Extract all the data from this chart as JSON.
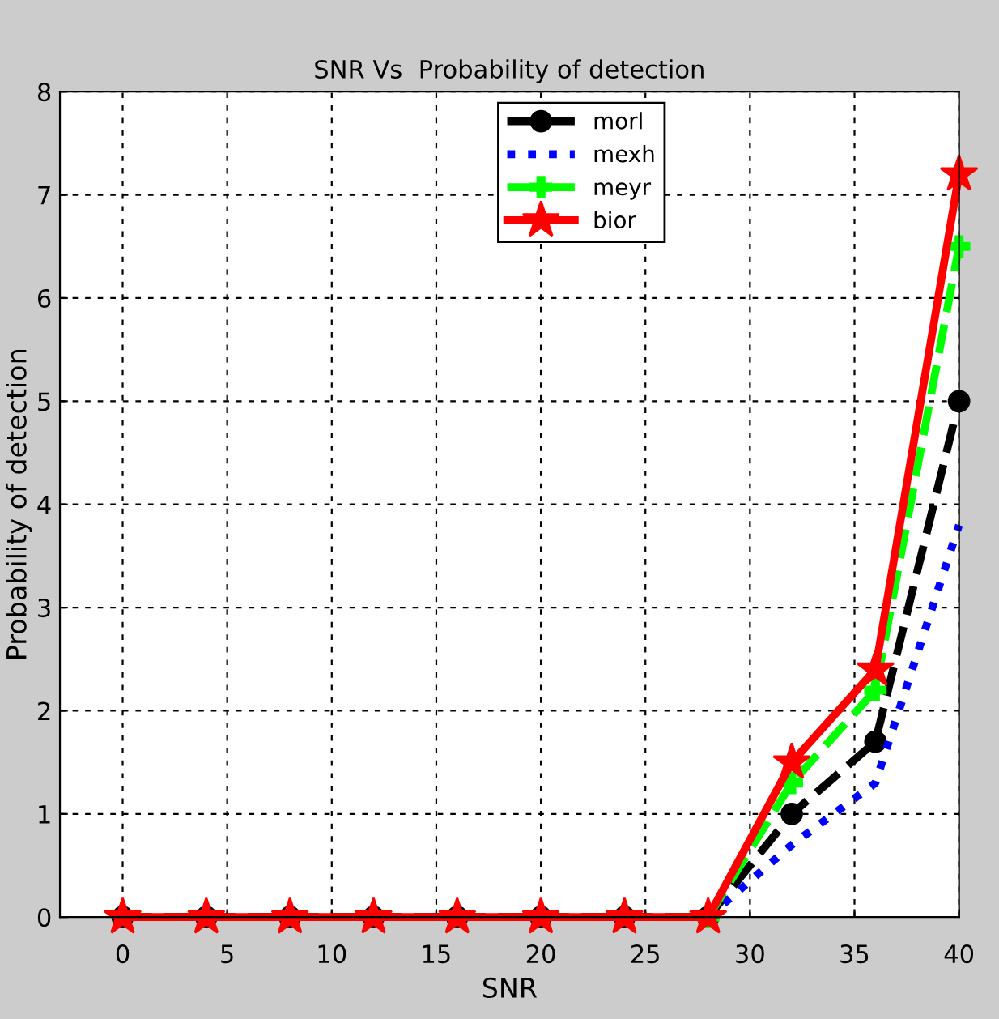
{
  "chart_data": {
    "type": "line",
    "title": "SNR Vs  Probability of detection",
    "xlabel": "SNR",
    "ylabel": "Probability of detection",
    "x": [
      0,
      4,
      8,
      12,
      16,
      20,
      24,
      28,
      32,
      36,
      40
    ],
    "series": [
      {
        "name": "morl",
        "color": "#000000",
        "marker": "circle",
        "line_style": "dashed",
        "values": [
          0,
          0,
          0,
          0,
          0,
          0,
          0,
          0,
          1.0,
          1.7,
          5.0
        ]
      },
      {
        "name": "mexh",
        "color": "#0000ff",
        "marker": "none",
        "line_style": "dotted",
        "values": [
          null,
          null,
          null,
          null,
          null,
          null,
          null,
          0,
          0.7,
          1.3,
          3.8
        ]
      },
      {
        "name": "meyr",
        "color": "#00ff00",
        "marker": "cross",
        "line_style": "dashed",
        "values": [
          null,
          null,
          null,
          null,
          null,
          null,
          null,
          0,
          1.3,
          2.2,
          6.5
        ]
      },
      {
        "name": "bior",
        "color": "#ff0000",
        "marker": "star",
        "line_style": "solid",
        "values": [
          0,
          0,
          0,
          0,
          0,
          0,
          0,
          0,
          1.5,
          2.4,
          7.2
        ]
      }
    ],
    "xlim": [
      -3,
      40
    ],
    "xticks": [
      0,
      5,
      10,
      15,
      20,
      25,
      30,
      35,
      40
    ],
    "ylim": [
      0,
      8
    ],
    "yticks": [
      0,
      1,
      2,
      3,
      4,
      5,
      6,
      7,
      8
    ],
    "grid": true,
    "legend": "top"
  }
}
